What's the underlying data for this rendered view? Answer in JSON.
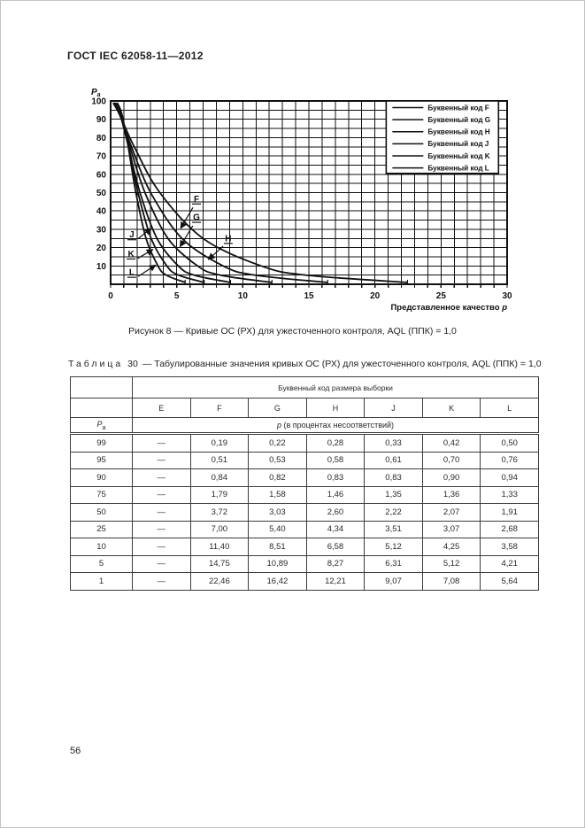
{
  "page": {
    "header": "ГОСТ IEC 62058-11—2012",
    "number": "56"
  },
  "figure": {
    "caption": "Рисунок 8 — Кривые ОС (РХ) для ужесточенного контроля, AQL (ППК) = 1,0"
  },
  "chart_data": {
    "type": "line",
    "title": "",
    "xlabel": "Представленное качество",
    "xlabel_italic": "p",
    "ylabel": "P",
    "ylabel_sub": "a",
    "xlim": [
      0,
      30
    ],
    "ylim": [
      0,
      100
    ],
    "x_tick_labels": [
      0,
      5,
      10,
      15,
      20,
      25,
      30
    ],
    "y_tick_labels": [
      100,
      90,
      80,
      70,
      60,
      50,
      40,
      30,
      20,
      10
    ],
    "x_grid_step": 1,
    "y_grid_step": 5,
    "grid": "on",
    "legend_position": "top-right",
    "pa_levels": [
      99,
      95,
      90,
      75,
      50,
      25,
      10,
      5,
      1
    ],
    "series": [
      {
        "code": "F",
        "legend": "Буквенный код F",
        "p_values": [
          0.19,
          0.51,
          0.84,
          1.79,
          3.72,
          7.0,
          11.4,
          14.75,
          22.46
        ]
      },
      {
        "code": "G",
        "legend": "Буквенный код G",
        "p_values": [
          0.22,
          0.53,
          0.82,
          1.58,
          3.03,
          5.4,
          8.51,
          10.89,
          16.42
        ]
      },
      {
        "code": "H",
        "legend": "Буквенный код H",
        "p_values": [
          0.28,
          0.58,
          0.83,
          1.46,
          2.6,
          4.34,
          6.58,
          8.27,
          12.21
        ]
      },
      {
        "code": "J",
        "legend": "Буквенный код J",
        "p_values": [
          0.33,
          0.61,
          0.83,
          1.35,
          2.22,
          3.51,
          5.12,
          6.31,
          9.07
        ]
      },
      {
        "code": "K",
        "legend": "Буквенный код K",
        "p_values": [
          0.42,
          0.7,
          0.9,
          1.36,
          2.07,
          3.07,
          4.25,
          5.12,
          7.08
        ]
      },
      {
        "code": "L",
        "legend": "Буквенный код L",
        "p_values": [
          0.5,
          0.76,
          0.94,
          1.33,
          1.91,
          2.68,
          3.58,
          4.21,
          5.64
        ]
      }
    ],
    "annotations": [
      {
        "text": "F",
        "label_x": 6.5,
        "label_y": 45,
        "tip_x": 5.3,
        "tip_y": 30.5
      },
      {
        "text": "G",
        "label_x": 6.5,
        "label_y": 35,
        "tip_x": 5.25,
        "tip_y": 20.5
      },
      {
        "text": "H",
        "label_x": 8.9,
        "label_y": 23.5,
        "tip_x": 7.4,
        "tip_y": 13.5
      },
      {
        "text": "J",
        "label_x": 1.6,
        "label_y": 25.5,
        "tip_x": 3.05,
        "tip_y": 30.5
      },
      {
        "text": "K",
        "label_x": 1.55,
        "label_y": 15,
        "tip_x": 3.2,
        "tip_y": 19
      },
      {
        "text": "L",
        "label_x": 1.6,
        "label_y": 5,
        "tip_x": 3.4,
        "tip_y": 10.5
      }
    ]
  },
  "table": {
    "title_word": "Таблица",
    "title_number": "30",
    "title_rest": "— Табулированные значения кривых ОС (РХ) для ужесточенного контроля, AQL (ППК) = 1,0",
    "header_group": "Буквенный код размера выборки",
    "code_headers": [
      "E",
      "F",
      "G",
      "H",
      "J",
      "K",
      "L"
    ],
    "pa_main": "P",
    "pa_sub": "a",
    "p_italic": "p",
    "p_rest": " (в процентах несоответствий)",
    "rows": [
      {
        "pa": "99",
        "values": [
          "—",
          "0,19",
          "0,22",
          "0,28",
          "0,33",
          "0,42",
          "0,50"
        ]
      },
      {
        "pa": "95",
        "values": [
          "—",
          "0,51",
          "0,53",
          "0,58",
          "0,61",
          "0,70",
          "0,76"
        ]
      },
      {
        "pa": "90",
        "values": [
          "—",
          "0,84",
          "0,82",
          "0,83",
          "0,83",
          "0,90",
          "0,94"
        ]
      },
      {
        "pa": "75",
        "values": [
          "—",
          "1,79",
          "1,58",
          "1,46",
          "1,35",
          "1,36",
          "1,33"
        ]
      },
      {
        "pa": "50",
        "values": [
          "—",
          "3,72",
          "3,03",
          "2,60",
          "2,22",
          "2,07",
          "1,91"
        ]
      },
      {
        "pa": "25",
        "values": [
          "—",
          "7,00",
          "5,40",
          "4,34",
          "3,51",
          "3,07",
          "2,68"
        ]
      },
      {
        "pa": "10",
        "values": [
          "—",
          "11,40",
          "8,51",
          "6,58",
          "5,12",
          "4,25",
          "3,58"
        ]
      },
      {
        "pa": "5",
        "values": [
          "—",
          "14,75",
          "10,89",
          "8,27",
          "6,31",
          "5,12",
          "4,21"
        ]
      },
      {
        "pa": "1",
        "values": [
          "—",
          "22,46",
          "16,42",
          "12,21",
          "9,07",
          "7,08",
          "5,64"
        ]
      }
    ]
  }
}
